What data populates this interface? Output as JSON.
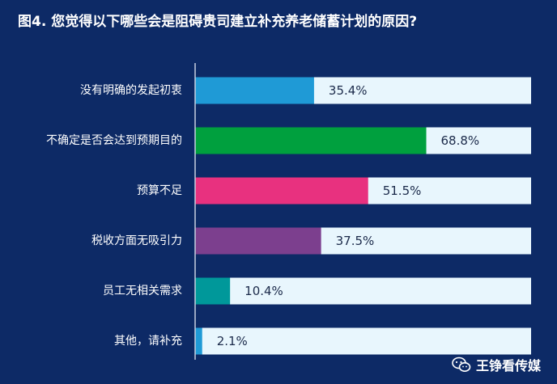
{
  "chart_data": {
    "type": "bar",
    "orientation": "horizontal",
    "title": "图4. 您觉得以下哪些会是阻碍贵司建立补充养老储蓄计划的原因?",
    "categories": [
      "没有明确的发起初衷",
      "不确定是否会达到预期目的",
      "预算不足",
      "税收方面无吸引力",
      "员工无相关需求",
      "其他，请补充"
    ],
    "values": [
      35.4,
      68.8,
      51.5,
      37.5,
      10.4,
      2.1
    ],
    "value_labels": [
      "35.4%",
      "68.8%",
      "51.5%",
      "37.5%",
      "10.4%",
      "2.1%"
    ],
    "colors": [
      "#1f9ad6",
      "#00a03e",
      "#e8317f",
      "#7c3f8e",
      "#00989a",
      "#1f9ad6"
    ],
    "track_color": "#e8f6fd",
    "xlim": [
      0,
      100
    ],
    "grid": false
  },
  "watermark": {
    "text": "王铮看传媒",
    "icon": "wechat-icon"
  }
}
